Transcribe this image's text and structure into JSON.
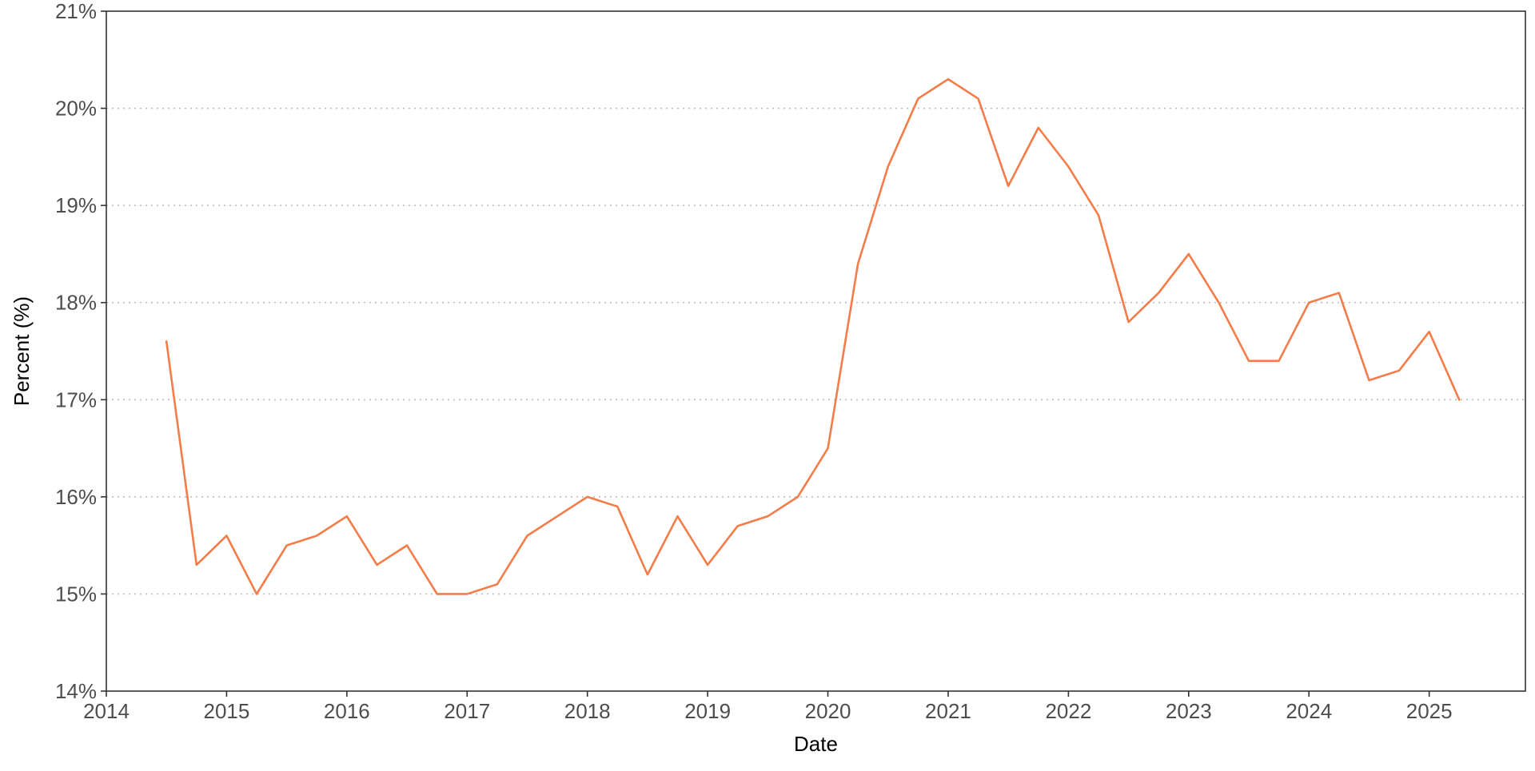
{
  "chart_data": {
    "type": "line",
    "title": "",
    "xlabel": "Date",
    "ylabel": "Percent (%)",
    "xlim": [
      2014.0,
      2025.8
    ],
    "ylim": [
      14,
      21
    ],
    "x_ticks": [
      2014,
      2015,
      2016,
      2017,
      2018,
      2019,
      2020,
      2021,
      2022,
      2023,
      2024,
      2025
    ],
    "x_tick_labels": [
      "2014",
      "2015",
      "2016",
      "2017",
      "2018",
      "2019",
      "2020",
      "2021",
      "2022",
      "2023",
      "2024",
      "2025"
    ],
    "y_ticks": [
      14,
      15,
      16,
      17,
      18,
      19,
      20,
      21
    ],
    "y_tick_labels": [
      "14%",
      "15%",
      "16%",
      "17%",
      "18%",
      "19%",
      "20%",
      "21%"
    ],
    "grid": {
      "horizontal": true,
      "vertical": false,
      "style": "dotted"
    },
    "legend": "none",
    "series": [
      {
        "color": "#f47c48",
        "x": [
          2014.5,
          2014.75,
          2015.0,
          2015.25,
          2015.5,
          2015.75,
          2016.0,
          2016.25,
          2016.5,
          2016.75,
          2017.0,
          2017.25,
          2017.5,
          2017.75,
          2018.0,
          2018.25,
          2018.5,
          2018.75,
          2019.0,
          2019.25,
          2019.5,
          2019.75,
          2020.0,
          2020.25,
          2020.5,
          2020.75,
          2021.0,
          2021.25,
          2021.5,
          2021.75,
          2022.0,
          2022.25,
          2022.5,
          2022.75,
          2023.0,
          2023.25,
          2023.5,
          2023.75,
          2024.0,
          2024.25,
          2024.5,
          2024.75,
          2025.0,
          2025.25
        ],
        "values": [
          17.6,
          15.3,
          15.6,
          15.0,
          15.5,
          15.6,
          15.8,
          15.3,
          15.5,
          15.0,
          15.0,
          15.1,
          15.6,
          15.8,
          16.0,
          15.9,
          15.2,
          15.8,
          15.3,
          15.7,
          15.8,
          16.0,
          16.5,
          18.4,
          19.4,
          20.1,
          20.3,
          20.1,
          19.2,
          19.8,
          19.4,
          18.9,
          17.8,
          18.1,
          18.5,
          18.0,
          17.4,
          17.4,
          18.0,
          18.1,
          17.2,
          17.3,
          17.7,
          17.0
        ]
      }
    ]
  }
}
